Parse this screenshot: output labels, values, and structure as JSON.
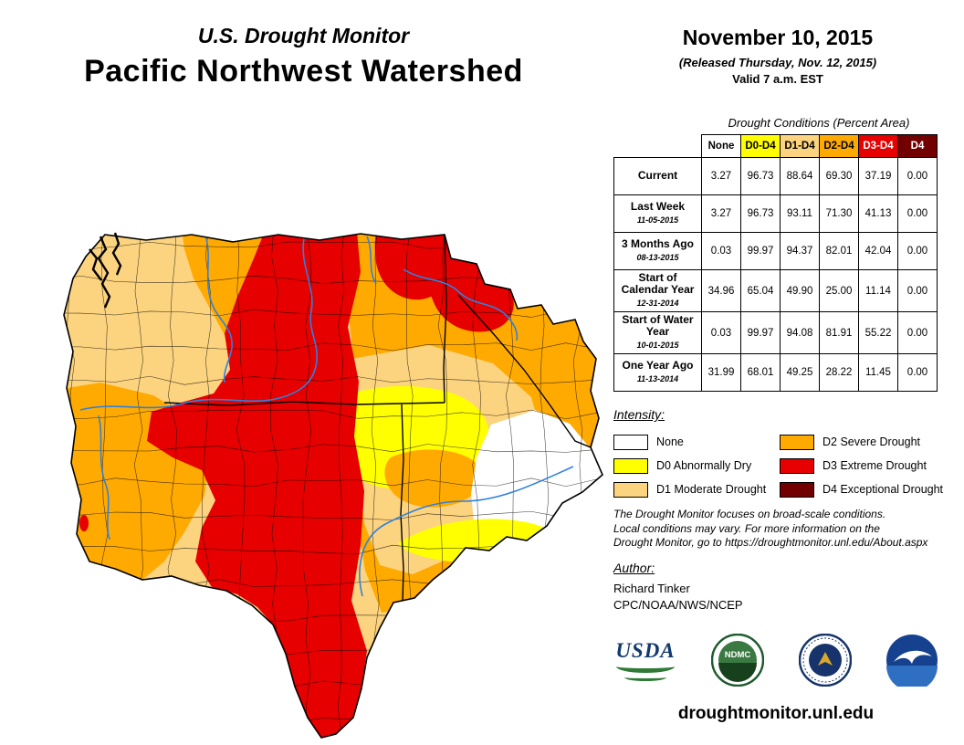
{
  "header": {
    "monitor_title": "U.S. Drought Monitor",
    "region_title": "Pacific Northwest Watershed",
    "date": "November 10, 2015",
    "released": "(Released Thursday, Nov. 12, 2015)",
    "valid": "Valid 7 a.m. EST"
  },
  "table": {
    "caption": "Drought Conditions (Percent Area)",
    "columns": [
      {
        "label": "None",
        "bg": "#FFFFFF",
        "fg": "#000000"
      },
      {
        "label": "D0-D4",
        "bg": "#FFFF00",
        "fg": "#000000"
      },
      {
        "label": "D1-D4",
        "bg": "#FCD37F",
        "fg": "#000000"
      },
      {
        "label": "D2-D4",
        "bg": "#FFAA00",
        "fg": "#000000"
      },
      {
        "label": "D3-D4",
        "bg": "#E60000",
        "fg": "#FFFFFF"
      },
      {
        "label": "D4",
        "bg": "#730000",
        "fg": "#FFFFFF"
      }
    ],
    "rows": [
      {
        "label": "Current",
        "date": "",
        "values": [
          "3.27",
          "96.73",
          "88.64",
          "69.30",
          "37.19",
          "0.00"
        ]
      },
      {
        "label": "Last Week",
        "date": "11-05-2015",
        "values": [
          "3.27",
          "96.73",
          "93.11",
          "71.30",
          "41.13",
          "0.00"
        ]
      },
      {
        "label": "3 Months Ago",
        "date": "08-13-2015",
        "values": [
          "0.03",
          "99.97",
          "94.37",
          "82.01",
          "42.04",
          "0.00"
        ]
      },
      {
        "label": "Start of Calendar Year",
        "date": "12-31-2014",
        "values": [
          "34.96",
          "65.04",
          "49.90",
          "25.00",
          "11.14",
          "0.00"
        ]
      },
      {
        "label": "Start of Water Year",
        "date": "10-01-2015",
        "values": [
          "0.03",
          "99.97",
          "94.08",
          "81.91",
          "55.22",
          "0.00"
        ]
      },
      {
        "label": "One Year Ago",
        "date": "11-13-2014",
        "values": [
          "31.99",
          "68.01",
          "49.25",
          "28.22",
          "11.45",
          "0.00"
        ]
      }
    ]
  },
  "legend": {
    "title": "Intensity:",
    "items": [
      {
        "label": "None",
        "color": "#FFFFFF"
      },
      {
        "label": "D0 Abnormally Dry",
        "color": "#FFFF00"
      },
      {
        "label": "D1 Moderate Drought",
        "color": "#FCD37F"
      },
      {
        "label": "D2 Severe Drought",
        "color": "#FFAA00"
      },
      {
        "label": "D3 Extreme Drought",
        "color": "#E60000"
      },
      {
        "label": "D4 Exceptional Drought",
        "color": "#730000"
      }
    ]
  },
  "notes": {
    "line1": "The Drought Monitor focuses on broad-scale conditions.",
    "line2": "Local conditions may vary. For more information on the",
    "line3": "Drought Monitor, go to https://droughtmonitor.unl.edu/About.aspx"
  },
  "author": {
    "heading": "Author:",
    "name": "Richard Tinker",
    "org": "CPC/NOAA/NWS/NCEP"
  },
  "logos": {
    "usda": "USDA",
    "ndmc": "NDMC"
  },
  "footer": {
    "url": "droughtmonitor.unl.edu"
  }
}
